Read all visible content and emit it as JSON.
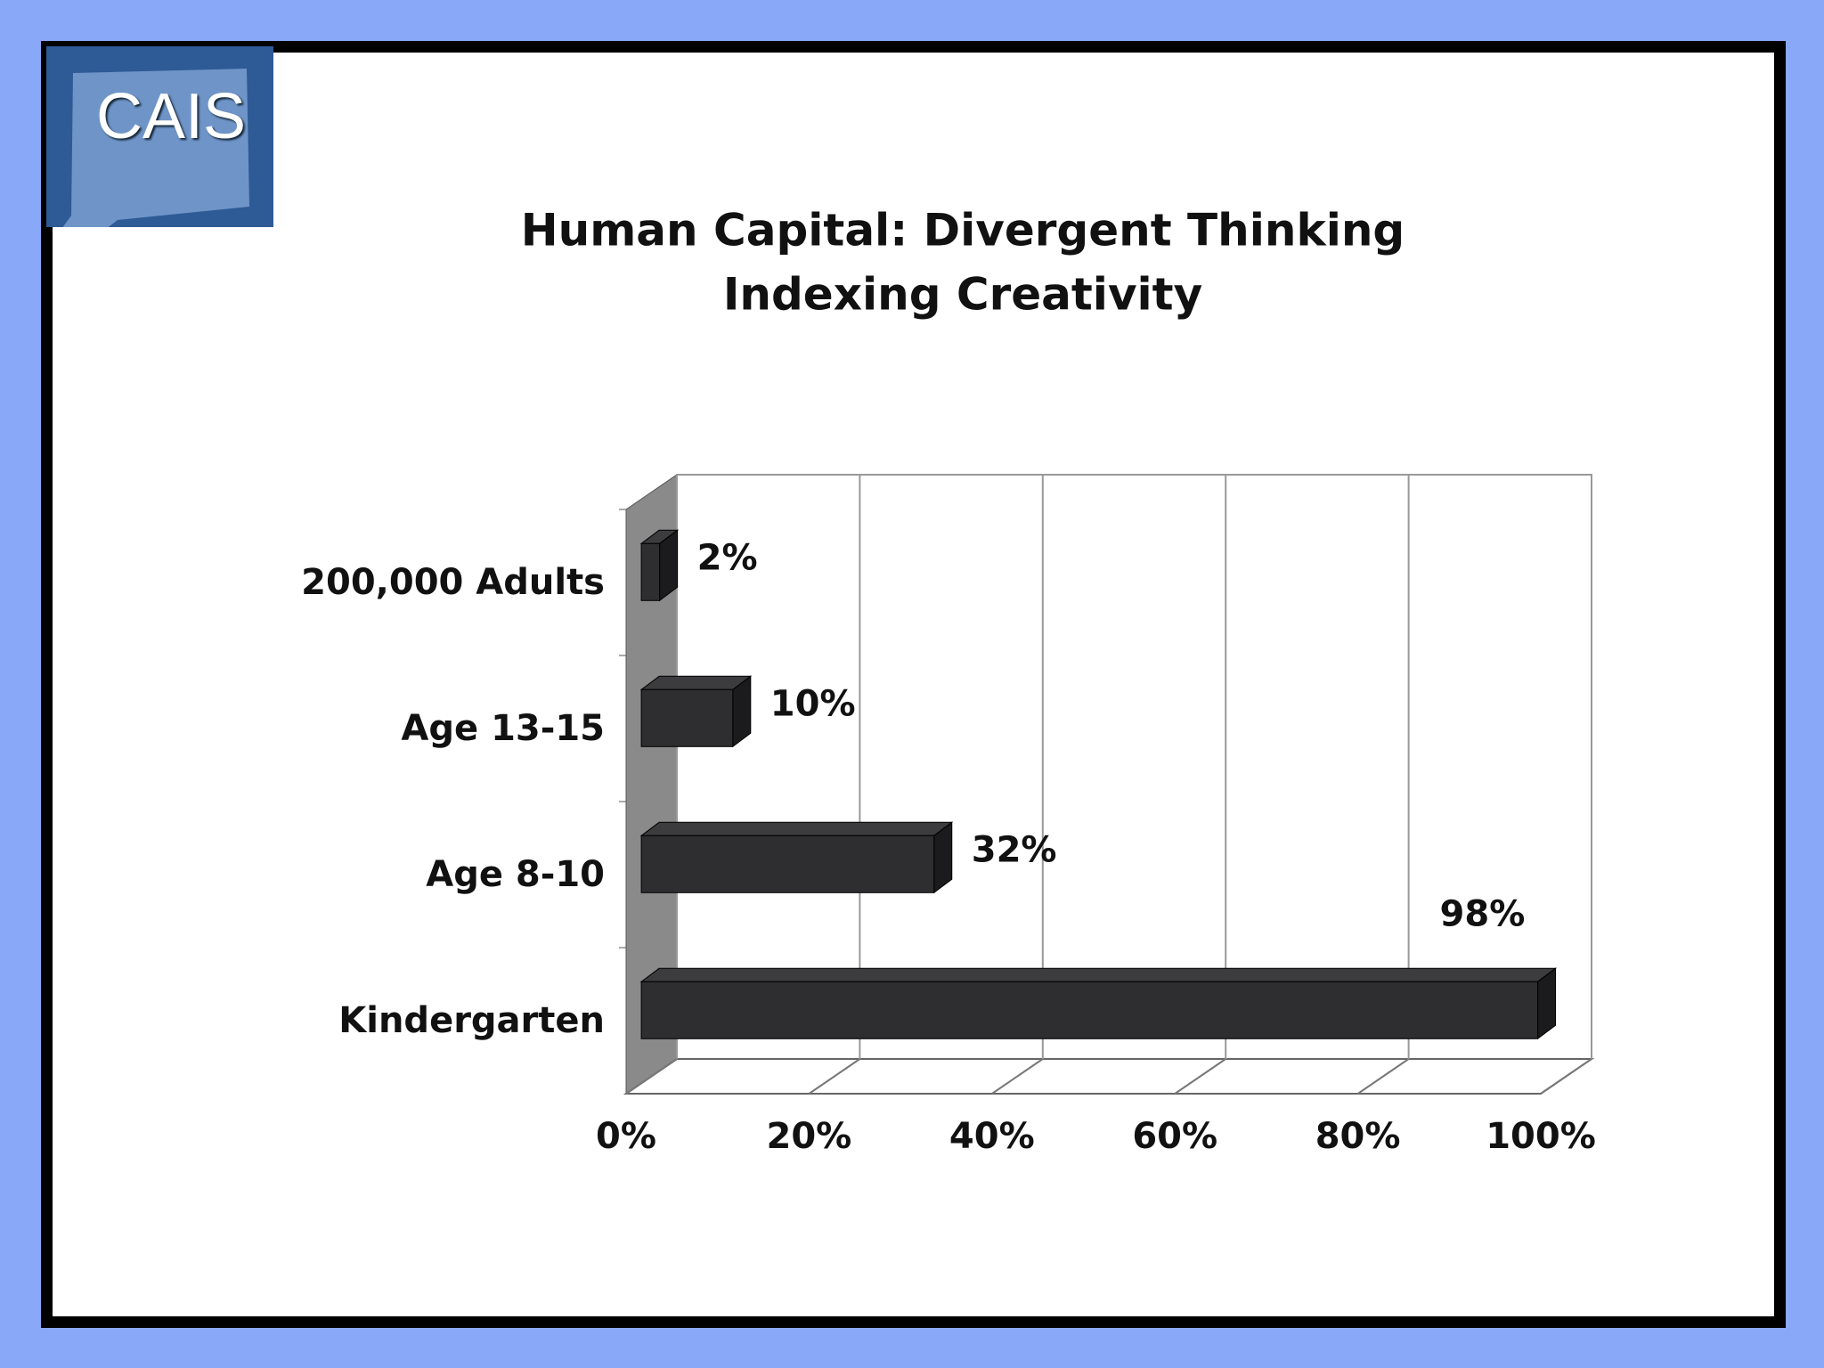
{
  "logo": "CAIS",
  "chart_data": {
    "type": "bar3d",
    "orientation": "horizontal",
    "title": "Human Capital: Divergent Thinking",
    "subtitle": "Indexing Creativity",
    "categories": [
      "200,000 Adults",
      "Age 13-15",
      "Age 8-10",
      "Kindergarten"
    ],
    "values": [
      2,
      10,
      32,
      98
    ],
    "value_labels": [
      "2%",
      "10%",
      "32%",
      "98%"
    ],
    "color": "#2e2d2f",
    "xlim": [
      0,
      100
    ],
    "xticks": [
      {
        "value": 0,
        "label": "0%"
      },
      {
        "value": 20,
        "label": "20%"
      },
      {
        "value": 40,
        "label": "40%"
      },
      {
        "value": 60,
        "label": "60%"
      },
      {
        "value": 80,
        "label": "80%"
      },
      {
        "value": 100,
        "label": "100%"
      }
    ],
    "grid": true
  }
}
